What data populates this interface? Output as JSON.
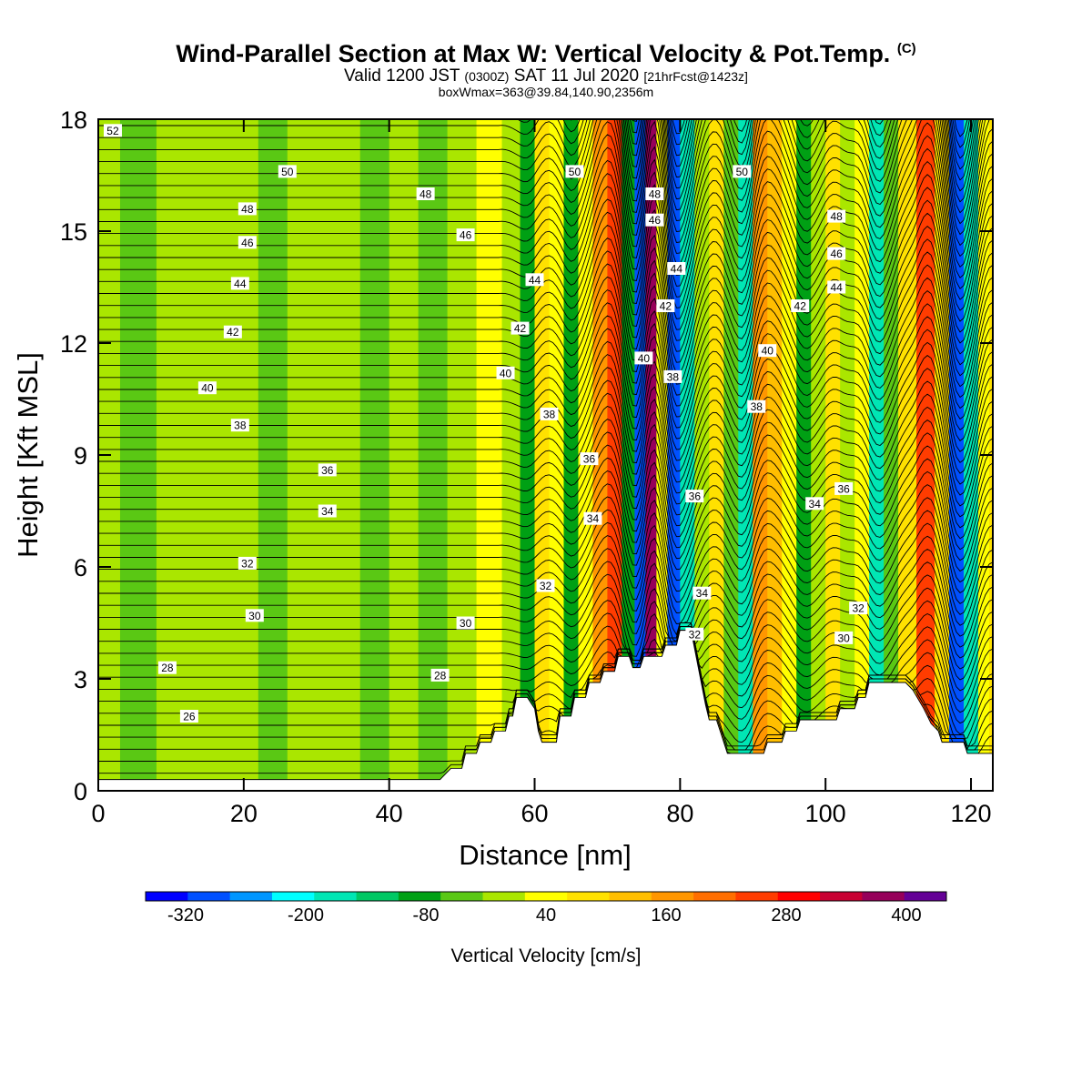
{
  "title": {
    "main": "Wind-Parallel Section at Max W: Vertical Velocity & Pot.Temp.",
    "copyright": "(C)",
    "valid_a": "Valid 1200 JST",
    "valid_b": "(0300Z)",
    "valid_c": "SAT 11 Jul 2020",
    "valid_d": "[21hrFcst@1423z]",
    "box": "boxWmax=363@39.84,140.90,2356m"
  },
  "chart_data": {
    "type": "heatmap",
    "title": "Wind-Parallel Section at Max W: Vertical Velocity & Pot.Temp.",
    "xlabel": "Distance [nm]",
    "ylabel": "Height [Kft MSL]",
    "xlim": [
      0,
      123
    ],
    "ylim": [
      0,
      18
    ],
    "x_ticks": [
      0,
      20,
      40,
      60,
      80,
      100,
      120
    ],
    "y_ticks": [
      0,
      3,
      6,
      9,
      12,
      15,
      18
    ],
    "colorbar": {
      "label": "Vertical Velocity [cm/s]",
      "min": -360,
      "max": 440,
      "tick_labels": [
        -320,
        -200,
        -80,
        40,
        160,
        280,
        400
      ],
      "colors": [
        "#0000ff",
        "#0050ff",
        "#0096ff",
        "#00ffff",
        "#00e6b4",
        "#00c864",
        "#00a014",
        "#5ac814",
        "#aae600",
        "#ffff00",
        "#ffe100",
        "#ffbe00",
        "#ff9600",
        "#ff6e00",
        "#ff3c00",
        "#ff0000",
        "#c80032",
        "#96005a",
        "#640096"
      ]
    },
    "field_columns": [
      {
        "x": 0,
        "w": -5
      },
      {
        "x": 6,
        "w": -30
      },
      {
        "x": 10,
        "w": -10
      },
      {
        "x": 20,
        "w": 5
      },
      {
        "x": 24,
        "w": -25
      },
      {
        "x": 28,
        "w": 0
      },
      {
        "x": 34,
        "w": 15
      },
      {
        "x": 38,
        "w": -25
      },
      {
        "x": 42,
        "w": 5
      },
      {
        "x": 46,
        "w": -40
      },
      {
        "x": 50,
        "w": -5
      },
      {
        "x": 54,
        "w": 60
      },
      {
        "x": 57,
        "w": -20
      },
      {
        "x": 59,
        "w": -100
      },
      {
        "x": 61,
        "w": 90
      },
      {
        "x": 63,
        "w": 40
      },
      {
        "x": 65,
        "w": -90
      },
      {
        "x": 67,
        "w": 20
      },
      {
        "x": 69,
        "w": 150
      },
      {
        "x": 71,
        "w": 230
      },
      {
        "x": 73,
        "w": -80
      },
      {
        "x": 74.5,
        "w": -300
      },
      {
        "x": 76,
        "w": 360
      },
      {
        "x": 77.5,
        "w": 40
      },
      {
        "x": 79,
        "w": -300
      },
      {
        "x": 81,
        "w": -150
      },
      {
        "x": 83,
        "w": 10
      },
      {
        "x": 85,
        "w": 80
      },
      {
        "x": 87,
        "w": -40
      },
      {
        "x": 89,
        "w": -170
      },
      {
        "x": 91,
        "w": 170
      },
      {
        "x": 93,
        "w": 110
      },
      {
        "x": 95,
        "w": 40
      },
      {
        "x": 97,
        "w": -90
      },
      {
        "x": 99,
        "w": -20
      },
      {
        "x": 101,
        "w": 70
      },
      {
        "x": 103,
        "w": -10
      },
      {
        "x": 105,
        "w": 60
      },
      {
        "x": 107,
        "w": -160
      },
      {
        "x": 109,
        "w": -40
      },
      {
        "x": 111,
        "w": 90
      },
      {
        "x": 114,
        "w": 250
      },
      {
        "x": 116,
        "w": 80
      },
      {
        "x": 118,
        "w": -300
      },
      {
        "x": 120,
        "w": -150
      },
      {
        "x": 122,
        "w": 60
      },
      {
        "x": 123,
        "w": 90
      }
    ],
    "terrain_kft": [
      [
        0,
        0.3
      ],
      [
        47,
        0.3
      ],
      [
        48.5,
        0.6
      ],
      [
        50,
        0.6
      ],
      [
        50.5,
        1.0
      ],
      [
        52,
        1.0
      ],
      [
        52.5,
        1.3
      ],
      [
        54,
        1.3
      ],
      [
        54.5,
        1.6
      ],
      [
        56,
        1.6
      ],
      [
        56.5,
        2.0
      ],
      [
        57,
        2.0
      ],
      [
        57.5,
        2.5
      ],
      [
        59,
        2.5
      ],
      [
        60,
        2.2
      ],
      [
        60.5,
        1.6
      ],
      [
        61,
        1.3
      ],
      [
        63,
        1.3
      ],
      [
        63.5,
        2.0
      ],
      [
        65,
        2.0
      ],
      [
        65.5,
        2.5
      ],
      [
        67,
        2.5
      ],
      [
        67.5,
        2.9
      ],
      [
        69,
        2.9
      ],
      [
        69.5,
        3.2
      ],
      [
        71,
        3.2
      ],
      [
        71.5,
        3.6
      ],
      [
        73,
        3.6
      ],
      [
        73.5,
        3.3
      ],
      [
        74.5,
        3.3
      ],
      [
        75,
        3.6
      ],
      [
        77.5,
        3.6
      ],
      [
        78,
        3.9
      ],
      [
        79.5,
        3.9
      ],
      [
        80,
        4.3
      ],
      [
        81.5,
        4.3
      ],
      [
        82.5,
        3.3
      ],
      [
        83.5,
        2.3
      ],
      [
        84,
        1.9
      ],
      [
        85,
        1.9
      ],
      [
        85.5,
        1.6
      ],
      [
        86,
        1.3
      ],
      [
        86.5,
        1.0
      ],
      [
        91.5,
        1.0
      ],
      [
        92,
        1.3
      ],
      [
        94,
        1.3
      ],
      [
        94.5,
        1.6
      ],
      [
        96,
        1.6
      ],
      [
        96.5,
        1.9
      ],
      [
        101.5,
        1.9
      ],
      [
        102,
        2.2
      ],
      [
        104,
        2.2
      ],
      [
        104.5,
        2.5
      ],
      [
        105.5,
        2.5
      ],
      [
        106,
        2.9
      ],
      [
        111,
        2.9
      ],
      [
        112,
        2.7
      ],
      [
        113.5,
        2.2
      ],
      [
        114.5,
        1.8
      ],
      [
        115.5,
        1.6
      ],
      [
        116,
        1.3
      ],
      [
        119,
        1.3
      ],
      [
        119.5,
        1.0
      ],
      [
        121,
        1.0
      ],
      [
        121.5,
        1.0
      ],
      [
        123,
        1.0
      ]
    ],
    "theta_isentropes": [
      {
        "label": "26",
        "label_at": [
          12.5,
          2.0
        ]
      },
      {
        "label": "28",
        "label_at": [
          9.5,
          3.3
        ]
      },
      {
        "label": "28",
        "label_at": [
          47,
          3.1
        ]
      },
      {
        "label": "30",
        "label_at": [
          21.5,
          4.7
        ]
      },
      {
        "label": "30",
        "label_at": [
          50.5,
          4.5
        ]
      },
      {
        "label": "30",
        "label_at": [
          102.5,
          4.1
        ]
      },
      {
        "label": "32",
        "label_at": [
          20.5,
          6.1
        ]
      },
      {
        "label": "32",
        "label_at": [
          61.5,
          5.5
        ]
      },
      {
        "label": "32",
        "label_at": [
          82,
          4.2
        ]
      },
      {
        "label": "32",
        "label_at": [
          104.5,
          4.9
        ]
      },
      {
        "label": "34",
        "label_at": [
          31.5,
          7.5
        ]
      },
      {
        "label": "34",
        "label_at": [
          68,
          7.3
        ]
      },
      {
        "label": "34",
        "label_at": [
          83,
          5.3
        ]
      },
      {
        "label": "34",
        "label_at": [
          98.5,
          7.7
        ]
      },
      {
        "label": "36",
        "label_at": [
          31.5,
          8.6
        ]
      },
      {
        "label": "36",
        "label_at": [
          67.5,
          8.9
        ]
      },
      {
        "label": "36",
        "label_at": [
          82,
          7.9
        ]
      },
      {
        "label": "36",
        "label_at": [
          102.5,
          8.1
        ]
      },
      {
        "label": "38",
        "label_at": [
          19.5,
          9.8
        ]
      },
      {
        "label": "38",
        "label_at": [
          62,
          10.1
        ]
      },
      {
        "label": "38",
        "label_at": [
          79,
          11.1
        ]
      },
      {
        "label": "38",
        "label_at": [
          90.5,
          10.3
        ]
      },
      {
        "label": "40",
        "label_at": [
          15,
          10.8
        ]
      },
      {
        "label": "40",
        "label_at": [
          56,
          11.2
        ]
      },
      {
        "label": "40",
        "label_at": [
          75,
          11.6
        ]
      },
      {
        "label": "40",
        "label_at": [
          92,
          11.8
        ]
      },
      {
        "label": "42",
        "label_at": [
          18.5,
          12.3
        ]
      },
      {
        "label": "42",
        "label_at": [
          58,
          12.4
        ]
      },
      {
        "label": "42",
        "label_at": [
          78,
          13.0
        ]
      },
      {
        "label": "42",
        "label_at": [
          96.5,
          13.0
        ]
      },
      {
        "label": "44",
        "label_at": [
          19.5,
          13.6
        ]
      },
      {
        "label": "44",
        "label_at": [
          60,
          13.7
        ]
      },
      {
        "label": "44",
        "label_at": [
          79.5,
          14.0
        ]
      },
      {
        "label": "44",
        "label_at": [
          101.5,
          13.5
        ]
      },
      {
        "label": "46",
        "label_at": [
          20.5,
          14.7
        ]
      },
      {
        "label": "46",
        "label_at": [
          50.5,
          14.9
        ]
      },
      {
        "label": "46",
        "label_at": [
          76.5,
          15.3
        ]
      },
      {
        "label": "46",
        "label_at": [
          101.5,
          14.4
        ]
      },
      {
        "label": "48",
        "label_at": [
          20.5,
          15.6
        ]
      },
      {
        "label": "48",
        "label_at": [
          45,
          16.0
        ]
      },
      {
        "label": "48",
        "label_at": [
          76.5,
          16.0
        ]
      },
      {
        "label": "48",
        "label_at": [
          101.5,
          15.4
        ]
      },
      {
        "label": "50",
        "label_at": [
          26,
          16.6
        ]
      },
      {
        "label": "50",
        "label_at": [
          65.5,
          16.6
        ]
      },
      {
        "label": "50",
        "label_at": [
          88.5,
          16.6
        ]
      },
      {
        "label": "52",
        "label_at": [
          2,
          17.7
        ]
      }
    ]
  }
}
